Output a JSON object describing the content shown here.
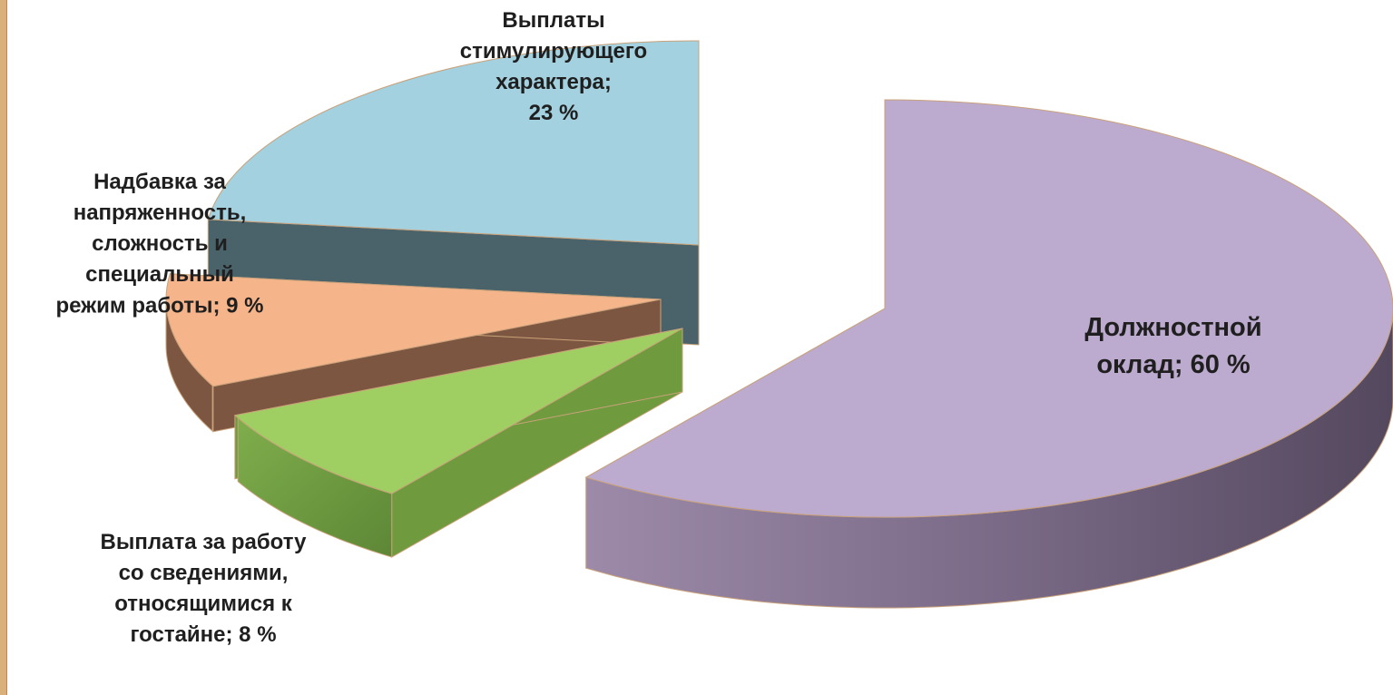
{
  "chart_data": {
    "type": "pie",
    "title": "",
    "three_d": true,
    "exploded": true,
    "slices": [
      {
        "label": "Должностной оклад; 60 %",
        "lines": [
          "Должностной",
          "оклад; 60 %"
        ],
        "value": 60,
        "top_color": "#bcaacf",
        "side_color": "#7c6c8c"
      },
      {
        "label": "Выплата за работу со сведениями, относящимися к гостайне; 8 %",
        "lines": [
          "Выплата за работу",
          "со сведениями,",
          "относящимися к",
          "гостайне; 8 %"
        ],
        "value": 8,
        "top_color": "#9fce62",
        "side_color": "#6f9a3e"
      },
      {
        "label": "Надбавка за напряженность, сложность и специальный режим работы; 9 %",
        "lines": [
          "Надбавка за",
          "напряженность,",
          "сложность и",
          "специальный",
          "режим работы; 9 %"
        ],
        "value": 9,
        "top_color": "#f6b48a",
        "side_color": "#7c5640"
      },
      {
        "label": "Выплаты стимулирующего характера; 23 %",
        "lines": [
          "Выплаты",
          "стимулирующего",
          "характера;",
          "23 %"
        ],
        "value": 23,
        "top_color": "#a3d1e0",
        "side_color": "#4a636b"
      }
    ]
  }
}
